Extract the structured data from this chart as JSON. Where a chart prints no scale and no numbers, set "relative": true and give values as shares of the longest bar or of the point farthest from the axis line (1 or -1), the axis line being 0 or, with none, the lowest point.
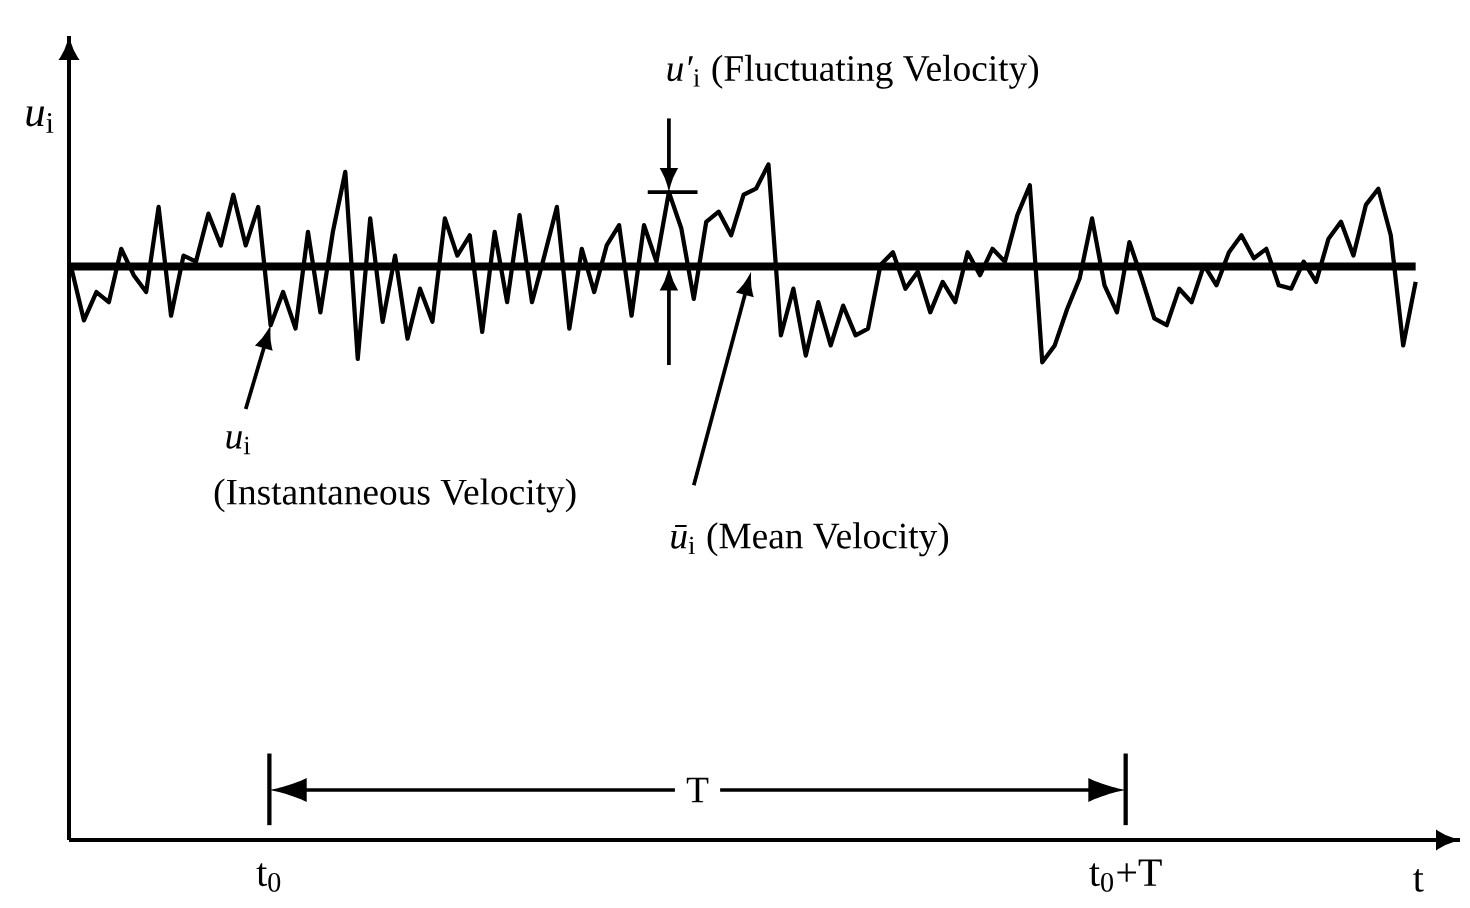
{
  "chart_data": {
    "type": "line",
    "relative": true,
    "color": "#000000",
    "xlabel": "t",
    "ylabel": "*u*$_{i}$",
    "categories": [
      null,
      null,
      null,
      null,
      null,
      null,
      null,
      null,
      null,
      null,
      null,
      null,
      null,
      null,
      null,
      null,
      null,
      null,
      null,
      null,
      null,
      null,
      null,
      null,
      null,
      null,
      null,
      null,
      null,
      null,
      null,
      null,
      null,
      null,
      null,
      null,
      null,
      null,
      null,
      null,
      null,
      null,
      null,
      null,
      null,
      null,
      null,
      null,
      null,
      null,
      null,
      null,
      null,
      null,
      null,
      null,
      null,
      null,
      null,
      null,
      null,
      null,
      null,
      null,
      null,
      null,
      null,
      null,
      null,
      null,
      null,
      null,
      null,
      null,
      null,
      null,
      null,
      null,
      null,
      null,
      null,
      null,
      null,
      null,
      null,
      null,
      null,
      null,
      null,
      null,
      null,
      null,
      null,
      null,
      null,
      null,
      null,
      null,
      null,
      null,
      null,
      null,
      null,
      null,
      null,
      null,
      null,
      null,
      null
    ],
    "values": [
      0.846,
      0.769,
      0.811,
      0.796,
      0.875,
      0.836,
      0.811,
      0.937,
      0.776,
      0.865,
      0.856,
      0.927,
      0.88,
      0.955,
      0.88,
      0.937,
      0.762,
      0.811,
      0.757,
      0.9,
      0.781,
      0.9,
      0.989,
      0.712,
      0.92,
      0.767,
      0.865,
      0.742,
      0.816,
      0.767,
      0.92,
      0.865,
      0.895,
      0.752,
      0.9,
      0.796,
      0.925,
      0.796,
      0.865,
      0.937,
      0.757,
      0.875,
      0.811,
      0.88,
      0.91,
      0.776,
      0.91,
      0.856,
      0.959,
      0.905,
      0.801,
      0.915,
      0.93,
      0.895,
      0.955,
      0.964,
      1,
      0.747,
      0.816,
      0.717,
      0.796,
      0.732,
      0.791,
      0.747,
      0.757,
      0.851,
      0.87,
      0.816,
      0.841,
      0.781,
      0.826,
      0.796,
      0.87,
      0.836,
      0.875,
      0.856,
      0.925,
      0.969,
      0.707,
      0.732,
      0.786,
      0.831,
      0.92,
      0.821,
      0.781,
      0.885,
      0.831,
      0.772,
      0.762,
      0.816,
      0.796,
      0.851,
      0.821,
      0.87,
      0.895,
      0.861,
      0.875,
      0.821,
      0.816,
      0.856,
      0.826,
      0.89,
      0.915,
      0.865,
      0.94,
      0.964,
      0.895,
      0.732,
      0.826
    ],
    "ref_lines": [
      {
        "axis": "y",
        "value": 0.849,
        "label": "*ū*$_{i}$ (Mean Velocity)"
      }
    ],
    "annotations": [
      "*u′*$_{i}$ (Fluctuating Velocity)",
      "*u*$_{i}$",
      "(Instantaneous Velocity)",
      "T",
      "t$_{0}$",
      "t$_{0}$+T"
    ]
  }
}
